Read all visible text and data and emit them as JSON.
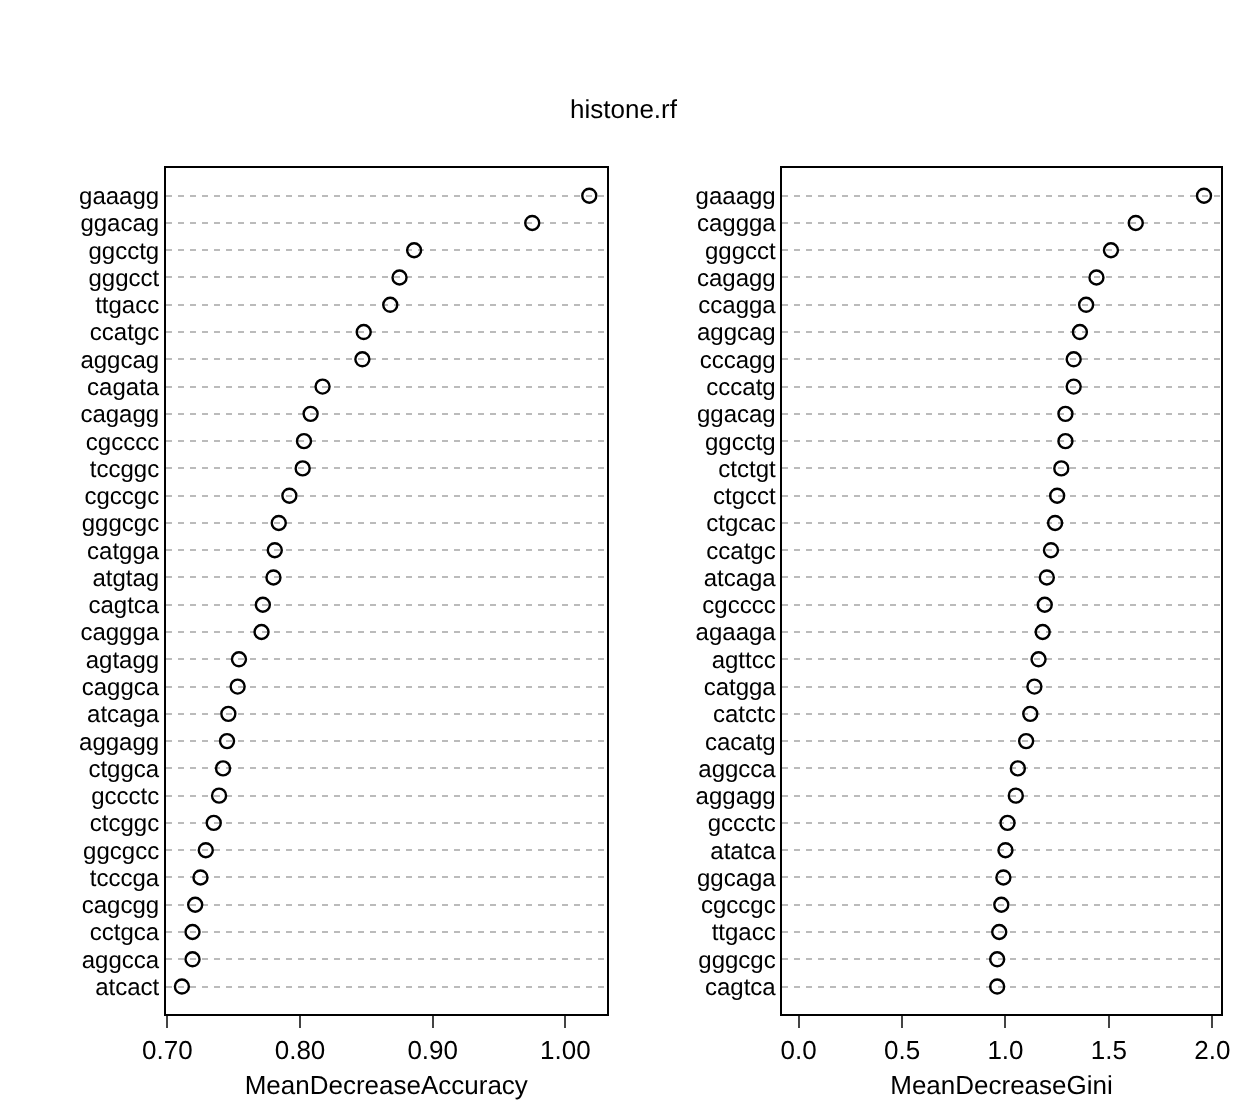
{
  "chart_data": [
    {
      "type": "scatter",
      "orientation": "horizontal",
      "title": "histone.rf",
      "xlabel": "MeanDecreaseAccuracy",
      "marker": "circle",
      "grid": "y",
      "color": "#000000",
      "categories": [
        "gaaagg",
        "ggacag",
        "ggcctg",
        "gggcct",
        "ttgacc",
        "ccatgc",
        "aggcag",
        "cagata",
        "cagagg",
        "cgcccc",
        "tccggc",
        "cgccgc",
        "gggcgc",
        "catgga",
        "atgtag",
        "cagtca",
        "caggga",
        "agtagg",
        "caggca",
        "atcaga",
        "aggagg",
        "ctggca",
        "gccctc",
        "ctcggc",
        "ggcgcc",
        "tcccga",
        "cagcgg",
        "cctgca",
        "aggcca",
        "atcact"
      ],
      "values": [
        1.018,
        0.975,
        0.886,
        0.875,
        0.868,
        0.848,
        0.847,
        0.817,
        0.808,
        0.803,
        0.802,
        0.792,
        0.784,
        0.781,
        0.78,
        0.772,
        0.771,
        0.754,
        0.753,
        0.746,
        0.745,
        0.742,
        0.739,
        0.735,
        0.729,
        0.725,
        0.721,
        0.719,
        0.719,
        0.711
      ],
      "xlim": [
        0.699,
        1.031
      ],
      "xticks": [
        {
          "value": 0.7,
          "label": "0.70"
        },
        {
          "value": 0.8,
          "label": "0.80"
        },
        {
          "value": 0.9,
          "label": "0.90"
        },
        {
          "value": 1.0,
          "label": "1.00"
        }
      ]
    },
    {
      "type": "scatter",
      "orientation": "horizontal",
      "xlabel": "MeanDecreaseGini",
      "marker": "circle",
      "grid": "y",
      "color": "#000000",
      "categories": [
        "gaaagg",
        "caggga",
        "gggcct",
        "cagagg",
        "ccagga",
        "aggcag",
        "cccagg",
        "cccatg",
        "ggacag",
        "ggcctg",
        "ctctgt",
        "ctgcct",
        "ctgcac",
        "ccatgc",
        "atcaga",
        "cgcccc",
        "agaaga",
        "agttcc",
        "catgga",
        "catctc",
        "cacatg",
        "aggcca",
        "aggagg",
        "gccctc",
        "atatca",
        "ggcaga",
        "cgccgc",
        "ttgacc",
        "gggcgc",
        "cagtca"
      ],
      "values": [
        1.96,
        1.63,
        1.51,
        1.44,
        1.39,
        1.36,
        1.33,
        1.33,
        1.29,
        1.29,
        1.27,
        1.25,
        1.24,
        1.22,
        1.2,
        1.19,
        1.18,
        1.16,
        1.14,
        1.12,
        1.1,
        1.06,
        1.05,
        1.01,
        1.0,
        0.99,
        0.98,
        0.97,
        0.96,
        0.96
      ],
      "xlim": [
        -0.078,
        2.04
      ],
      "xticks": [
        {
          "value": 0,
          "label": "0.0"
        },
        {
          "value": 0.5,
          "label": "0.5"
        },
        {
          "value": 1.0,
          "label": "1.0"
        },
        {
          "value": 1.5,
          "label": "1.5"
        },
        {
          "value": 2.0,
          "label": "2.0"
        }
      ]
    }
  ]
}
